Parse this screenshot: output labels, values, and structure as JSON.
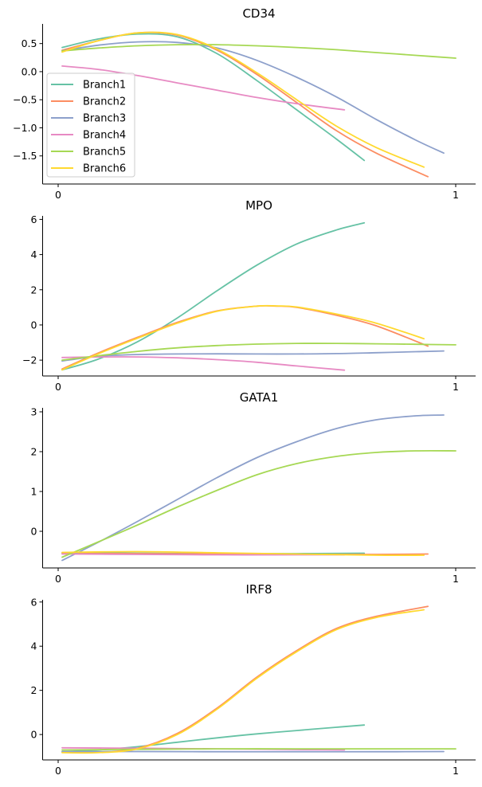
{
  "chart_data": [
    {
      "type": "line",
      "title": "CD34",
      "xlabel": "",
      "ylabel": "",
      "xlim": [
        0,
        1
      ],
      "ylim": [
        -2.0,
        0.85
      ],
      "xticks": [
        0,
        1
      ],
      "yticks": [
        0.5,
        0.0,
        -0.5,
        -1.0,
        -1.5
      ],
      "ytick_labels": [
        "0.5",
        "0.0",
        "−0.5",
        "−1.0",
        "−1.5"
      ],
      "legend": {
        "position": "lower-left",
        "entries": [
          "Branch1",
          "Branch2",
          "Branch3",
          "Branch4",
          "Branch5",
          "Branch6"
        ]
      },
      "series": [
        {
          "name": "Branch1",
          "color": "#66c2a5",
          "x": [
            0.01,
            0.1,
            0.2,
            0.3,
            0.4,
            0.5,
            0.6,
            0.7,
            0.77
          ],
          "y": [
            0.43,
            0.58,
            0.67,
            0.62,
            0.32,
            -0.16,
            -0.68,
            -1.2,
            -1.58
          ]
        },
        {
          "name": "Branch2",
          "color": "#fc8d62",
          "x": [
            0.01,
            0.1,
            0.2,
            0.3,
            0.4,
            0.5,
            0.6,
            0.7,
            0.8,
            0.93
          ],
          "y": [
            0.38,
            0.55,
            0.69,
            0.65,
            0.38,
            -0.05,
            -0.55,
            -1.05,
            -1.45,
            -1.87
          ]
        },
        {
          "name": "Branch3",
          "color": "#8da0cb",
          "x": [
            0.01,
            0.1,
            0.2,
            0.3,
            0.4,
            0.5,
            0.6,
            0.7,
            0.8,
            0.9,
            0.97
          ],
          "y": [
            0.37,
            0.47,
            0.53,
            0.52,
            0.42,
            0.2,
            -0.1,
            -0.45,
            -0.85,
            -1.22,
            -1.45
          ]
        },
        {
          "name": "Branch4",
          "color": "#e78ac3",
          "x": [
            0.01,
            0.1,
            0.2,
            0.3,
            0.4,
            0.5,
            0.6,
            0.72
          ],
          "y": [
            0.1,
            0.04,
            -0.07,
            -0.2,
            -0.33,
            -0.46,
            -0.57,
            -0.68
          ]
        },
        {
          "name": "Branch5",
          "color": "#a6d854",
          "x": [
            0.01,
            0.1,
            0.2,
            0.3,
            0.4,
            0.5,
            0.6,
            0.7,
            0.8,
            0.9,
            1.0
          ],
          "y": [
            0.37,
            0.42,
            0.46,
            0.48,
            0.48,
            0.46,
            0.43,
            0.39,
            0.34,
            0.29,
            0.24
          ]
        },
        {
          "name": "Branch6",
          "color": "#ffd92f",
          "x": [
            0.01,
            0.1,
            0.2,
            0.3,
            0.4,
            0.5,
            0.6,
            0.7,
            0.8,
            0.92
          ],
          "y": [
            0.35,
            0.55,
            0.69,
            0.66,
            0.4,
            -0.02,
            -0.5,
            -0.97,
            -1.35,
            -1.7
          ]
        }
      ]
    },
    {
      "type": "line",
      "title": "MPO",
      "xlabel": "",
      "ylabel": "",
      "xlim": [
        0,
        1
      ],
      "ylim": [
        -2.9,
        6.2
      ],
      "xticks": [
        0,
        1
      ],
      "yticks": [
        6,
        4,
        2,
        0,
        -2
      ],
      "ytick_labels": [
        "6",
        "4",
        "2",
        "0",
        "−2"
      ],
      "series": [
        {
          "name": "Branch1",
          "color": "#66c2a5",
          "x": [
            0.01,
            0.1,
            0.2,
            0.3,
            0.4,
            0.5,
            0.6,
            0.7,
            0.77
          ],
          "y": [
            -2.55,
            -1.95,
            -0.95,
            0.4,
            1.95,
            3.4,
            4.6,
            5.4,
            5.8
          ]
        },
        {
          "name": "Branch2",
          "color": "#fc8d62",
          "x": [
            0.01,
            0.1,
            0.2,
            0.3,
            0.4,
            0.5,
            0.55,
            0.6,
            0.7,
            0.8,
            0.93
          ],
          "y": [
            -2.5,
            -1.6,
            -0.7,
            0.15,
            0.8,
            1.07,
            1.07,
            1.0,
            0.55,
            -0.05,
            -1.2
          ]
        },
        {
          "name": "Branch3",
          "color": "#8da0cb",
          "x": [
            0.01,
            0.1,
            0.2,
            0.3,
            0.4,
            0.5,
            0.6,
            0.7,
            0.8,
            0.9,
            0.97
          ],
          "y": [
            -2.05,
            -1.78,
            -1.68,
            -1.65,
            -1.64,
            -1.65,
            -1.65,
            -1.63,
            -1.58,
            -1.52,
            -1.48
          ]
        },
        {
          "name": "Branch4",
          "color": "#e78ac3",
          "x": [
            0.01,
            0.1,
            0.2,
            0.3,
            0.4,
            0.5,
            0.6,
            0.72
          ],
          "y": [
            -1.85,
            -1.82,
            -1.82,
            -1.87,
            -1.97,
            -2.12,
            -2.33,
            -2.57
          ]
        },
        {
          "name": "Branch5",
          "color": "#a6d854",
          "x": [
            0.01,
            0.1,
            0.2,
            0.3,
            0.4,
            0.5,
            0.6,
            0.7,
            0.8,
            0.9,
            1.0
          ],
          "y": [
            -2.0,
            -1.75,
            -1.5,
            -1.3,
            -1.17,
            -1.09,
            -1.05,
            -1.05,
            -1.07,
            -1.1,
            -1.13
          ]
        },
        {
          "name": "Branch6",
          "color": "#ffd92f",
          "x": [
            0.01,
            0.1,
            0.2,
            0.3,
            0.4,
            0.5,
            0.55,
            0.6,
            0.7,
            0.8,
            0.92
          ],
          "y": [
            -2.55,
            -1.65,
            -0.75,
            0.1,
            0.78,
            1.07,
            1.08,
            1.02,
            0.62,
            0.1,
            -0.78
          ]
        }
      ]
    },
    {
      "type": "line",
      "title": "GATA1",
      "xlabel": "",
      "ylabel": "",
      "xlim": [
        0,
        1
      ],
      "ylim": [
        -0.92,
        3.1
      ],
      "xticks": [
        0,
        1
      ],
      "yticks": [
        3,
        2,
        1,
        0
      ],
      "ytick_labels": [
        "3",
        "2",
        "1",
        "0"
      ],
      "series": [
        {
          "name": "Branch1",
          "color": "#66c2a5",
          "x": [
            0.01,
            0.2,
            0.4,
            0.6,
            0.77
          ],
          "y": [
            -0.54,
            -0.55,
            -0.56,
            -0.56,
            -0.55
          ]
        },
        {
          "name": "Branch2",
          "color": "#fc8d62",
          "x": [
            0.01,
            0.2,
            0.4,
            0.6,
            0.8,
            0.93
          ],
          "y": [
            -0.56,
            -0.56,
            -0.57,
            -0.58,
            -0.58,
            -0.57
          ]
        },
        {
          "name": "Branch3",
          "color": "#8da0cb",
          "x": [
            0.01,
            0.1,
            0.2,
            0.3,
            0.4,
            0.5,
            0.6,
            0.7,
            0.8,
            0.9,
            0.97
          ],
          "y": [
            -0.73,
            -0.28,
            0.25,
            0.8,
            1.35,
            1.85,
            2.25,
            2.58,
            2.8,
            2.9,
            2.92
          ]
        },
        {
          "name": "Branch4",
          "color": "#e78ac3",
          "x": [
            0.01,
            0.2,
            0.4,
            0.6,
            0.72
          ],
          "y": [
            -0.57,
            -0.58,
            -0.59,
            -0.59,
            -0.59
          ]
        },
        {
          "name": "Branch5",
          "color": "#a6d854",
          "x": [
            0.01,
            0.1,
            0.2,
            0.3,
            0.4,
            0.5,
            0.6,
            0.7,
            0.8,
            0.9,
            1.0
          ],
          "y": [
            -0.65,
            -0.27,
            0.16,
            0.61,
            1.03,
            1.42,
            1.7,
            1.88,
            1.98,
            2.02,
            2.02
          ]
        },
        {
          "name": "Branch6",
          "color": "#ffd92f",
          "x": [
            0.01,
            0.2,
            0.4,
            0.6,
            0.8,
            0.92
          ],
          "y": [
            -0.53,
            -0.51,
            -0.54,
            -0.57,
            -0.6,
            -0.6
          ]
        }
      ]
    },
    {
      "type": "line",
      "title": "IRF8",
      "xlabel": "",
      "ylabel": "",
      "xlim": [
        0,
        1
      ],
      "ylim": [
        -1.15,
        6.1
      ],
      "xticks": [
        0,
        1
      ],
      "yticks": [
        6,
        4,
        2,
        0
      ],
      "ytick_labels": [
        "6",
        "4",
        "2",
        "0"
      ],
      "series": [
        {
          "name": "Branch1",
          "color": "#66c2a5",
          "x": [
            0.01,
            0.1,
            0.2,
            0.3,
            0.4,
            0.5,
            0.6,
            0.7,
            0.77
          ],
          "y": [
            -0.78,
            -0.7,
            -0.55,
            -0.35,
            -0.15,
            0.03,
            0.18,
            0.33,
            0.43
          ]
        },
        {
          "name": "Branch2",
          "color": "#fc8d62",
          "x": [
            0.01,
            0.1,
            0.2,
            0.3,
            0.4,
            0.5,
            0.6,
            0.7,
            0.8,
            0.93
          ],
          "y": [
            -0.8,
            -0.8,
            -0.62,
            0.05,
            1.2,
            2.6,
            3.8,
            4.8,
            5.35,
            5.8
          ]
        },
        {
          "name": "Branch3",
          "color": "#8da0cb",
          "x": [
            0.01,
            0.2,
            0.4,
            0.6,
            0.8,
            0.97
          ],
          "y": [
            -0.77,
            -0.77,
            -0.78,
            -0.78,
            -0.78,
            -0.77
          ]
        },
        {
          "name": "Branch4",
          "color": "#e78ac3",
          "x": [
            0.01,
            0.2,
            0.4,
            0.6,
            0.72
          ],
          "y": [
            -0.6,
            -0.62,
            -0.65,
            -0.68,
            -0.7
          ]
        },
        {
          "name": "Branch5",
          "color": "#a6d854",
          "x": [
            0.01,
            0.2,
            0.4,
            0.6,
            0.8,
            1.0
          ],
          "y": [
            -0.7,
            -0.67,
            -0.65,
            -0.65,
            -0.65,
            -0.65
          ]
        },
        {
          "name": "Branch6",
          "color": "#ffd92f",
          "x": [
            0.01,
            0.1,
            0.2,
            0.3,
            0.4,
            0.5,
            0.6,
            0.7,
            0.8,
            0.92
          ],
          "y": [
            -0.82,
            -0.82,
            -0.65,
            0.0,
            1.15,
            2.55,
            3.75,
            4.75,
            5.3,
            5.65
          ]
        }
      ]
    }
  ]
}
